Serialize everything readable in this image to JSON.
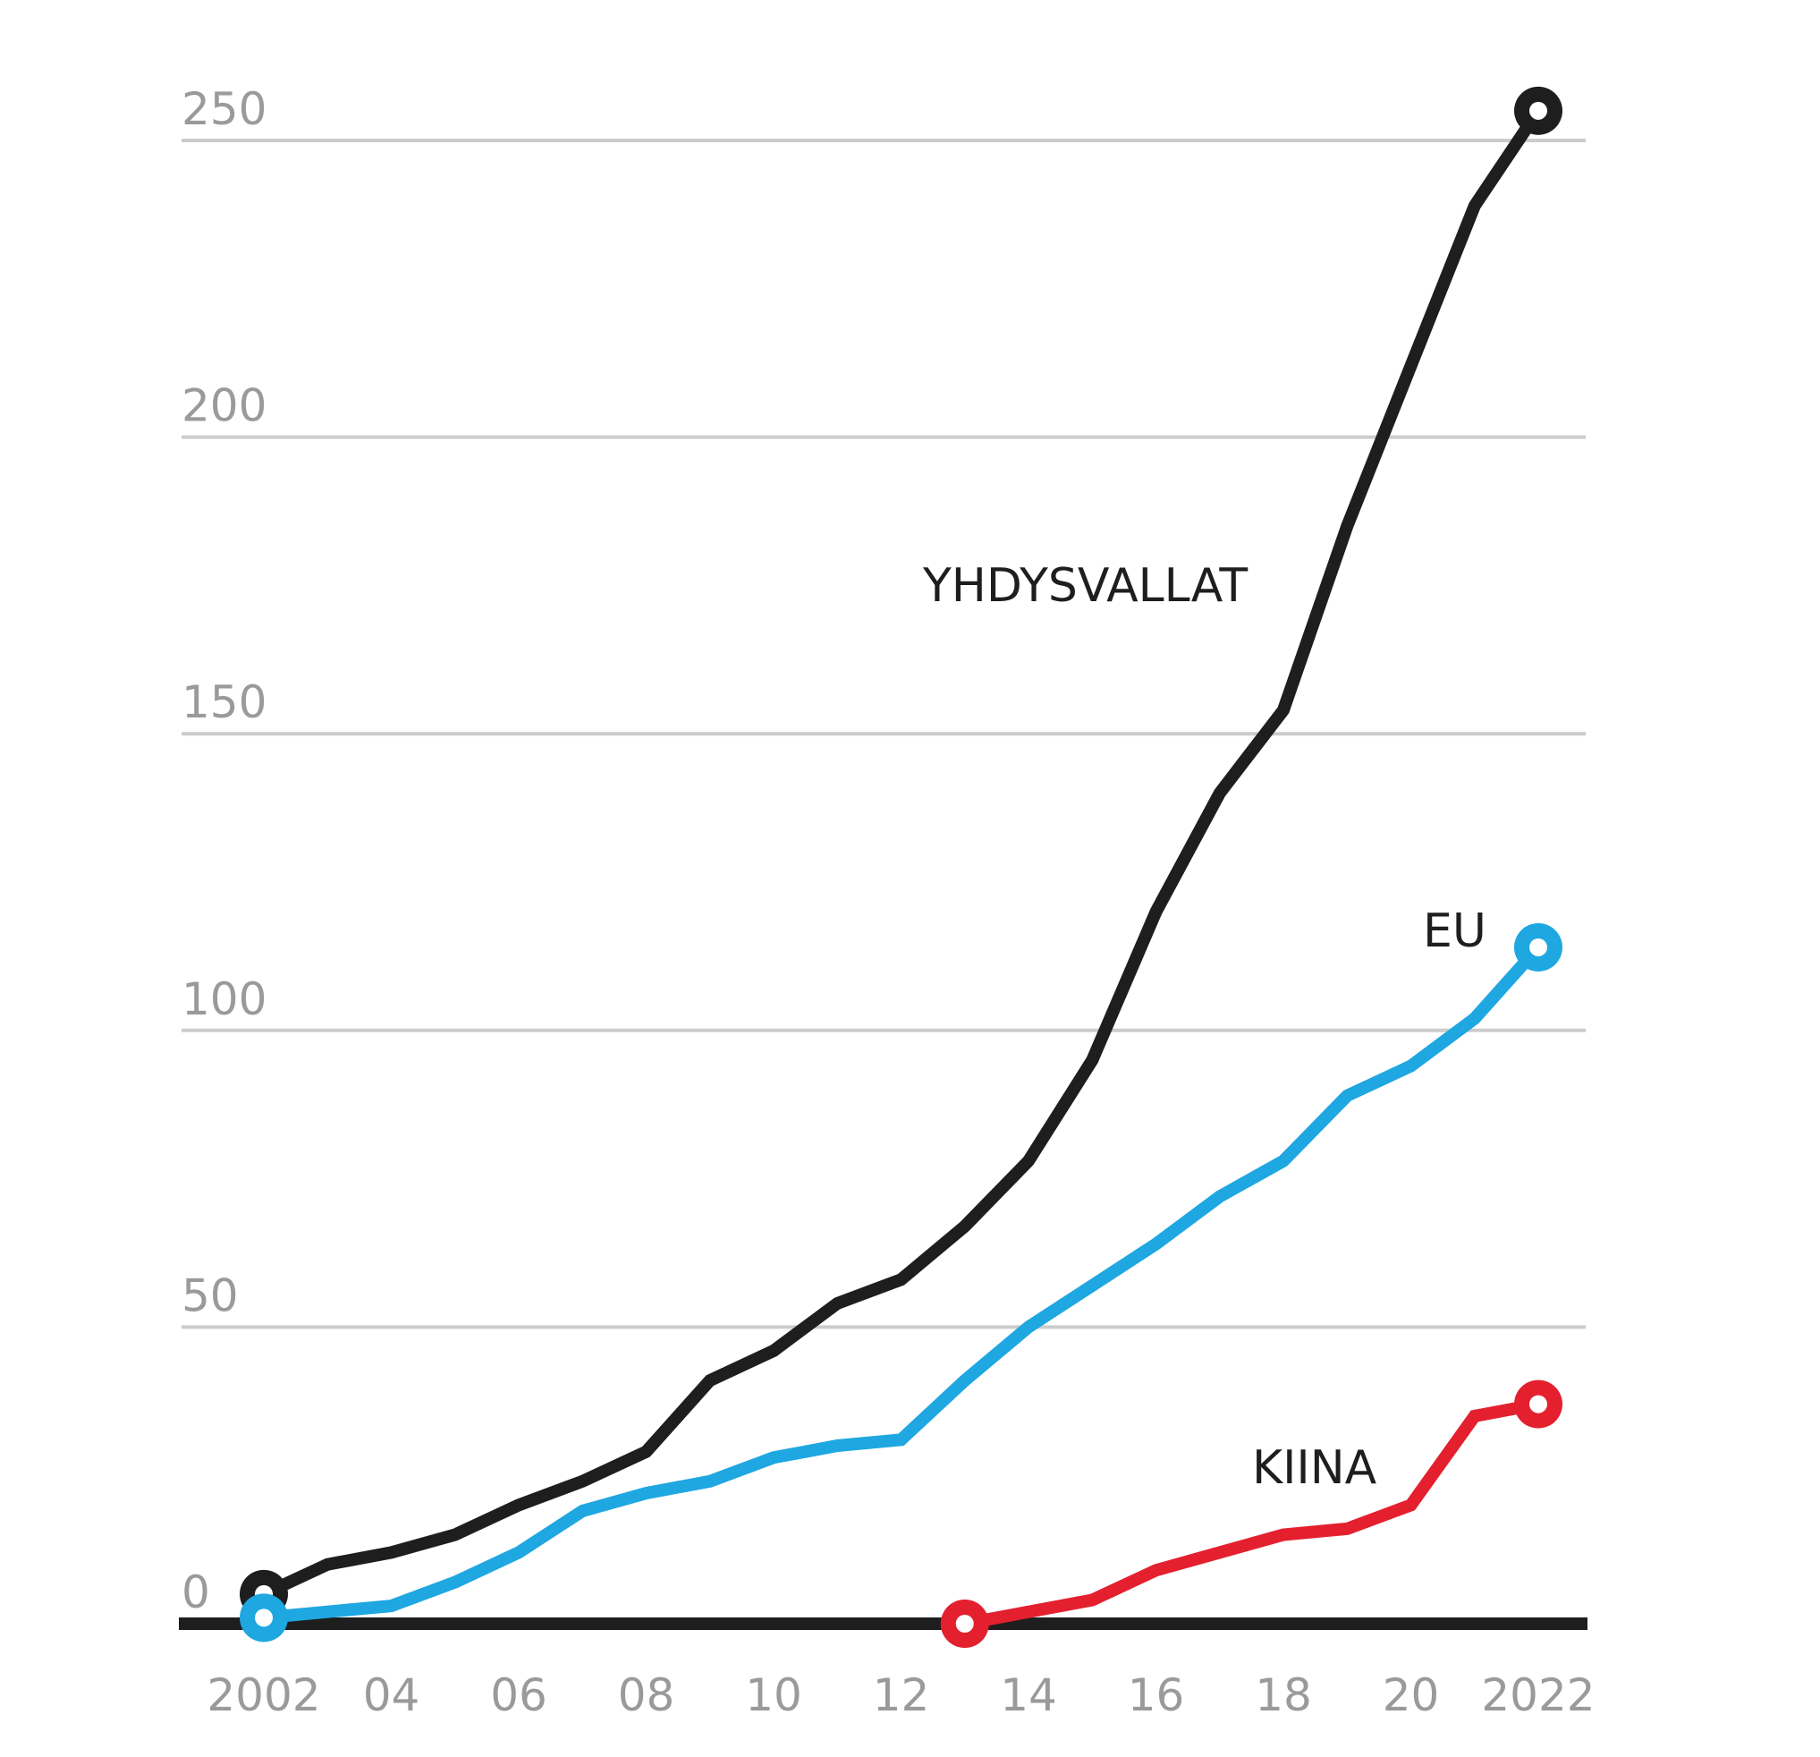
{
  "chart_data": {
    "type": "line",
    "x": [
      2002,
      2003,
      2004,
      2005,
      2006,
      2007,
      2008,
      2009,
      2010,
      2011,
      2012,
      2013,
      2014,
      2015,
      2016,
      2017,
      2018,
      2019,
      2020,
      2021,
      2022
    ],
    "x_tick_values": [
      2002,
      2004,
      2006,
      2008,
      2010,
      2012,
      2014,
      2016,
      2018,
      2020,
      2022
    ],
    "x_tick_labels": [
      "2002",
      "04",
      "06",
      "08",
      "10",
      "12",
      "14",
      "16",
      "18",
      "20",
      "2022"
    ],
    "y_ticks": [
      0,
      50,
      100,
      150,
      200,
      250
    ],
    "y_tick_labels": [
      "0",
      "50",
      "100",
      "150",
      "200",
      "250"
    ],
    "ylim": [
      0,
      255
    ],
    "xlim": [
      2002,
      2022
    ],
    "grid": true,
    "series": [
      {
        "name": "YHDYSVALLAT",
        "color": "#1e1e1e",
        "values": [
          5,
          10,
          12,
          15,
          20,
          24,
          29,
          41,
          46,
          54,
          58,
          67,
          78,
          95,
          120,
          140,
          154,
          185,
          212,
          239,
          255
        ]
      },
      {
        "name": "EU",
        "color": "#1ea7e1",
        "values": [
          1,
          2,
          3,
          7,
          12,
          19,
          22,
          24,
          28,
          30,
          31,
          41,
          50,
          57,
          64,
          72,
          78,
          89,
          94,
          102,
          114
        ]
      },
      {
        "name": "KIINA",
        "color": "#e4202e",
        "values": [
          null,
          null,
          null,
          null,
          null,
          null,
          null,
          null,
          null,
          null,
          null,
          0,
          2,
          4,
          9,
          12,
          15,
          16,
          20,
          35,
          37
        ]
      }
    ]
  }
}
